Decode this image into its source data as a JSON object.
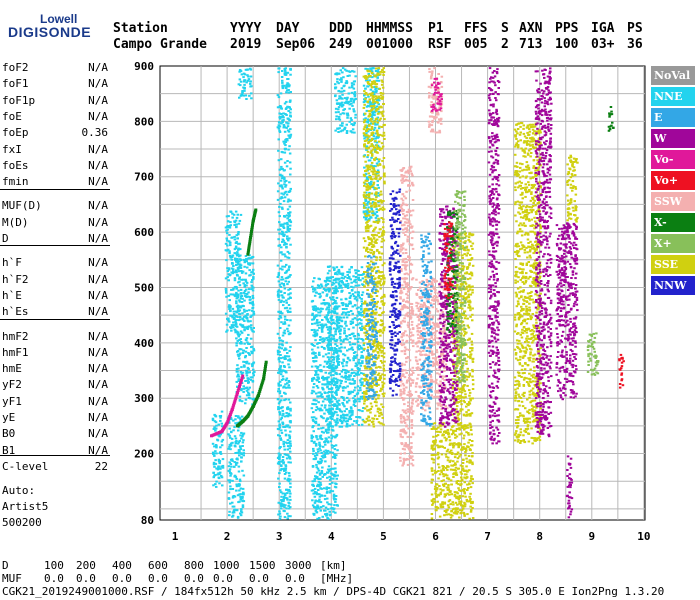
{
  "logo": {
    "line1": "Lowell",
    "line2": "DIGISONDE"
  },
  "header": {
    "labels": [
      "Station",
      "YYYY",
      "DAY",
      "DDD",
      "HHMMSS",
      "P1",
      "FFS",
      "S",
      "AXN",
      "PPS",
      "IGA",
      "PS"
    ],
    "values": [
      "Campo Grande",
      "2019",
      "Sep06",
      "249",
      "001000",
      "RSF",
      "005",
      "2",
      "713",
      "100",
      "03+",
      "36"
    ]
  },
  "params": [
    {
      "label": "foF2",
      "value": "N/A"
    },
    {
      "label": "foF1",
      "value": "N/A"
    },
    {
      "label": "foF1p",
      "value": "N/A"
    },
    {
      "label": "foE",
      "value": "N/A"
    },
    {
      "label": "foEp",
      "value": "0.36"
    },
    {
      "label": "fxI",
      "value": "N/A"
    },
    {
      "label": "foEs",
      "value": "N/A"
    },
    {
      "label": "fmin",
      "value": "N/A"
    },
    {
      "label": "MUF(D)",
      "value": "N/A"
    },
    {
      "label": "M(D)",
      "value": "N/A"
    },
    {
      "label": "D",
      "value": "N/A"
    },
    {
      "label": "h`F",
      "value": "N/A"
    },
    {
      "label": "h`F2",
      "value": "N/A"
    },
    {
      "label": "h`E",
      "value": "N/A"
    },
    {
      "label": "h`Es",
      "value": "N/A"
    },
    {
      "label": "hmF2",
      "value": "N/A"
    },
    {
      "label": "hmF1",
      "value": "N/A"
    },
    {
      "label": "hmE",
      "value": "N/A"
    },
    {
      "label": "yF2",
      "value": "N/A"
    },
    {
      "label": "yF1",
      "value": "N/A"
    },
    {
      "label": "yE",
      "value": "N/A"
    },
    {
      "label": "B0",
      "value": "N/A"
    },
    {
      "label": "B1",
      "value": "N/A"
    },
    {
      "label": "C-level",
      "value": "22"
    }
  ],
  "auto": {
    "line1": "Auto:",
    "line2": "Artist5",
    "line3": "500200"
  },
  "legend": [
    {
      "label": "NoVal",
      "color": "#999999"
    },
    {
      "label": "NNE",
      "color": "#22d3ee"
    },
    {
      "label": "E",
      "color": "#33a7e6"
    },
    {
      "label": "W",
      "color": "#a0069a"
    },
    {
      "label": "Vo-",
      "color": "#e0189a"
    },
    {
      "label": "Vo+",
      "color": "#ee1122"
    },
    {
      "label": "SSW",
      "color": "#f4b0b0"
    },
    {
      "label": "X-",
      "color": "#0b7f12"
    },
    {
      "label": "X+",
      "color": "#88c05a"
    },
    {
      "label": "SSE",
      "color": "#d0d010"
    },
    {
      "label": "NNW",
      "color": "#2222cc"
    }
  ],
  "bottom": {
    "d_label": "D",
    "d_values": [
      "100",
      "200",
      "400",
      "600",
      "800",
      "1000",
      "1500",
      "3000",
      "[km]"
    ],
    "muf_label": "MUF",
    "muf_values": [
      "0.0",
      "0.0",
      "0.0",
      "0.0",
      "0.0",
      "0.0",
      "0.0",
      "0.0",
      "[MHz]"
    ],
    "footer": "CGK21_2019249001000.RSF / 184fx512h 50 kHz 2.5 km / DPS-4D CGK21 821 / 20.5 S 305.0 E Ion2Png 1.3.20"
  },
  "chart_data": {
    "type": "scatter",
    "x_ticks": [
      "1",
      "2",
      "3",
      "4",
      "5",
      "6",
      "7",
      "8",
      "9",
      "10"
    ],
    "y_ticks": [
      "80",
      "200",
      "300",
      "400",
      "500",
      "600",
      "700",
      "800",
      "900"
    ],
    "xlim": [
      0.8,
      10.2
    ],
    "ylim": [
      80,
      900
    ],
    "grid": true,
    "legend_position": "right",
    "series": [
      {
        "name": "NNE",
        "color": "#22d3ee",
        "clusters": [
          {
            "f": [
              1.95,
              2.25
            ],
            "h": [
              420,
              640
            ]
          },
          {
            "f": [
              2.15,
              2.5
            ],
            "h": [
              290,
              560
            ]
          },
          {
            "f": [
              2.2,
              2.45
            ],
            "h": [
              840,
              900
            ]
          },
          {
            "f": [
              2.0,
              2.3
            ],
            "h": [
              80,
              270
            ]
          },
          {
            "f": [
              2.95,
              3.2
            ],
            "h": [
              80,
              900
            ]
          },
          {
            "f": [
              3.6,
              4.1
            ],
            "h": [
              80,
              520
            ]
          },
          {
            "f": [
              3.9,
              4.6
            ],
            "h": [
              250,
              540
            ]
          },
          {
            "f": [
              4.05,
              4.45
            ],
            "h": [
              780,
              900
            ]
          },
          {
            "f": [
              4.6,
              4.9
            ],
            "h": [
              620,
              900
            ]
          },
          {
            "f": [
              1.7,
              1.9
            ],
            "h": [
              140,
              280
            ]
          }
        ]
      },
      {
        "name": "SSW",
        "color": "#f4b0b0",
        "clusters": [
          {
            "f": [
              5.6,
              6.2
            ],
            "h": [
              280,
              520
            ]
          },
          {
            "f": [
              5.85,
              6.1
            ],
            "h": [
              780,
              900
            ]
          },
          {
            "f": [
              5.3,
              5.55
            ],
            "h": [
              180,
              720
            ]
          }
        ]
      },
      {
        "name": "SSE",
        "color": "#d0d010",
        "clusters": [
          {
            "f": [
              4.6,
              5.0
            ],
            "h": [
              250,
              900
            ]
          },
          {
            "f": [
              6.3,
              6.7
            ],
            "h": [
              80,
              600
            ]
          },
          {
            "f": [
              7.5,
              8.0
            ],
            "h": [
              220,
              800
            ]
          },
          {
            "f": [
              5.9,
              6.3
            ],
            "h": [
              80,
              260
            ]
          },
          {
            "f": [
              8.5,
              8.7
            ],
            "h": [
              620,
              740
            ]
          }
        ]
      },
      {
        "name": "W",
        "color": "#a0069a",
        "clusters": [
          {
            "f": [
              6.05,
              6.4
            ],
            "h": [
              250,
              650
            ]
          },
          {
            "f": [
              7.0,
              7.2
            ],
            "h": [
              220,
              900
            ]
          },
          {
            "f": [
              7.9,
              8.2
            ],
            "h": [
              230,
              900
            ]
          },
          {
            "f": [
              8.3,
              8.7
            ],
            "h": [
              300,
              620
            ]
          },
          {
            "f": [
              8.5,
              8.6
            ],
            "h": [
              80,
              200
            ]
          }
        ]
      },
      {
        "name": "E",
        "color": "#33a7e6",
        "clusters": [
          {
            "f": [
              5.7,
              5.9
            ],
            "h": [
              250,
              600
            ]
          },
          {
            "f": [
              4.65,
              4.85
            ],
            "h": [
              300,
              560
            ]
          }
        ]
      },
      {
        "name": "X-",
        "color": "#0b7f12",
        "clusters": [
          {
            "f": [
              6.2,
              6.4
            ],
            "h": [
              420,
              640
            ]
          },
          {
            "f": [
              9.3,
              9.4
            ],
            "h": [
              780,
              830
            ]
          }
        ]
      },
      {
        "name": "X+",
        "color": "#88c05a",
        "clusters": [
          {
            "f": [
              6.35,
              6.55
            ],
            "h": [
              330,
              680
            ]
          },
          {
            "f": [
              8.9,
              9.1
            ],
            "h": [
              340,
              420
            ]
          }
        ]
      },
      {
        "name": "Vo+",
        "color": "#ee1122",
        "clusters": [
          {
            "f": [
              6.15,
              6.3
            ],
            "h": [
              480,
              620
            ]
          },
          {
            "f": [
              9.5,
              9.6
            ],
            "h": [
              320,
              380
            ]
          }
        ]
      },
      {
        "name": "Vo-",
        "color": "#e0189a",
        "clusters": [
          {
            "f": [
              5.9,
              6.1
            ],
            "h": [
              820,
              880
            ]
          }
        ]
      },
      {
        "name": "NNW",
        "color": "#2222cc",
        "clusters": [
          {
            "f": [
              5.1,
              5.3
            ],
            "h": [
              300,
              680
            ]
          }
        ]
      }
    ],
    "traces": [
      {
        "name": "X-",
        "color": "#0b7f12",
        "points": [
          [
            2.2,
            250
          ],
          [
            2.3,
            258
          ],
          [
            2.4,
            268
          ],
          [
            2.5,
            285
          ],
          [
            2.6,
            305
          ],
          [
            2.7,
            335
          ],
          [
            2.75,
            365
          ]
        ]
      },
      {
        "name": "Vo-",
        "color": "#e0189a",
        "points": [
          [
            1.7,
            232
          ],
          [
            1.9,
            240
          ],
          [
            2.0,
            255
          ],
          [
            2.1,
            280
          ],
          [
            2.2,
            310
          ],
          [
            2.3,
            340
          ]
        ]
      },
      {
        "name": "X-",
        "color": "#0b7f12",
        "points": [
          [
            2.4,
            560
          ],
          [
            2.45,
            590
          ],
          [
            2.5,
            620
          ],
          [
            2.55,
            640
          ]
        ]
      }
    ]
  }
}
